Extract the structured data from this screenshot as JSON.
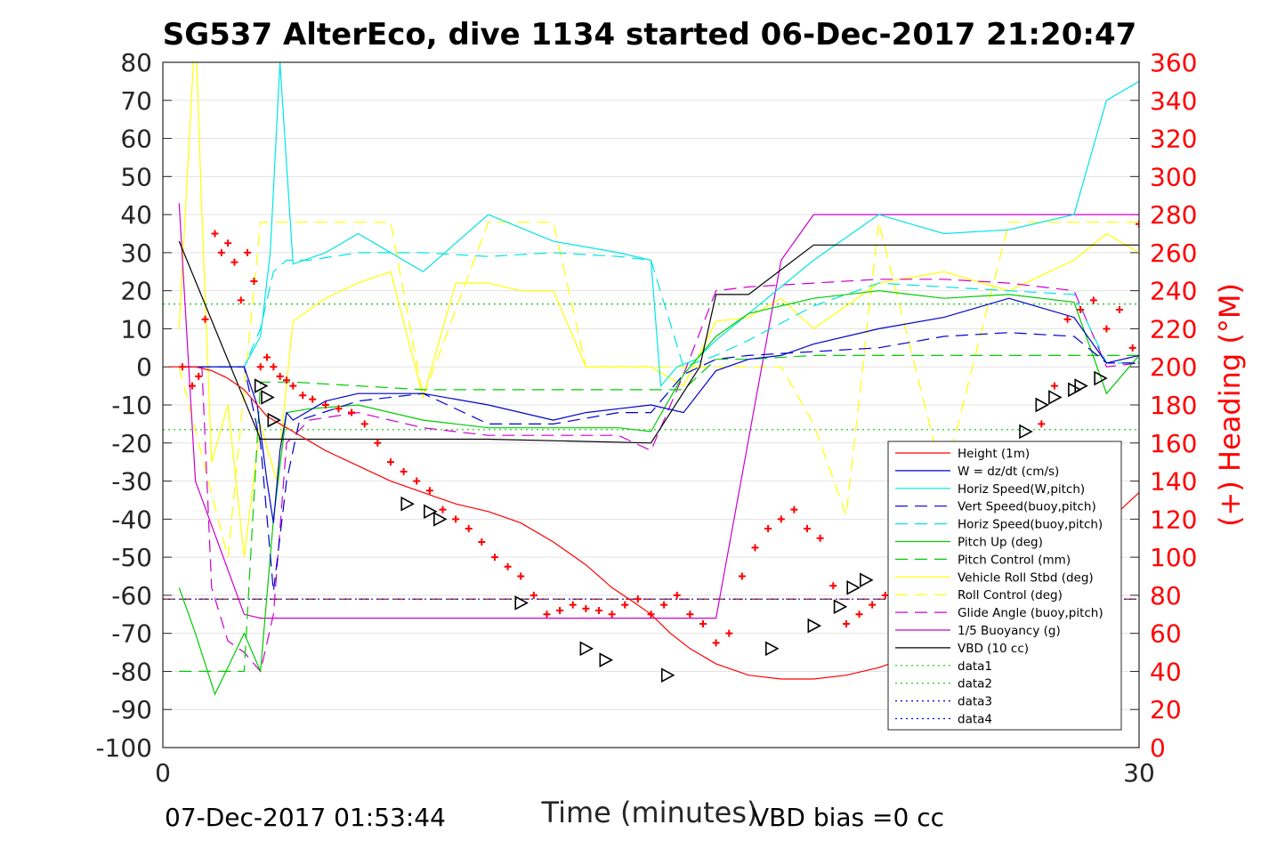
{
  "chart_data": {
    "type": "line",
    "title": "SG537 AlterEco, dive 1134 started 06-Dec-2017 21:20:47",
    "xlabel": "Time (minutes)",
    "ylabel_right": "(+) Heading (°M)",
    "footer_left": "07-Dec-2017 01:53:44",
    "footer_right": "VBD bias =0 cc",
    "xlim": [
      0,
      30
    ],
    "ylim": [
      -100,
      80
    ],
    "ylim_right": [
      0,
      360
    ],
    "x_ticks": [
      "0",
      "30"
    ],
    "y_ticks": [
      "80",
      "70",
      "60",
      "50",
      "40",
      "30",
      "20",
      "10",
      "0",
      "-10",
      "-20",
      "-30",
      "-40",
      "-50",
      "-60",
      "-70",
      "-80",
      "-90",
      "-100"
    ],
    "y_right_ticks": [
      "360",
      "340",
      "320",
      "300",
      "280",
      "260",
      "240",
      "220",
      "200",
      "180",
      "160",
      "140",
      "120",
      "100",
      "80",
      "60",
      "40",
      "20",
      "0"
    ],
    "grid": true,
    "legend_position": "lower-right",
    "colors": {
      "height": "#ff0000",
      "w": "#0000cc",
      "horiz_speed": "#00e5e5",
      "pitch": "#00cc00",
      "roll": "#ffff00",
      "glide": "#cc00cc",
      "buoyancy": "#cc00cc",
      "vbd": "#000000",
      "heading": "#ff0000"
    },
    "legend": [
      "Height (1m)",
      "W = dz/dt (cm/s)",
      "Horiz Speed(W,pitch)",
      "Vert Speed(buoy,pitch)",
      "Horiz Speed(buoy,pitch)",
      "Pitch Up (deg)",
      "Pitch Control (mm)",
      "Vehicle Roll Stbd (deg)",
      "Roll Control (deg)",
      "Glide Angle (buoy,pitch)",
      "1/5 Buoyancy (g)",
      "VBD (10 cc)",
      "data1",
      "data2",
      "data3",
      "data4"
    ],
    "series": [
      {
        "name": "Height (1m)",
        "x": [
          0.2,
          0.6,
          1.0,
          1.5,
          2.0,
          2.5,
          3.2,
          4.0,
          5.0,
          6.0,
          7.0,
          8.0,
          9.0,
          10.0,
          11.0,
          12.0,
          13.0,
          13.8,
          14.5,
          15.0,
          15.6,
          16.2,
          17.0,
          18.0,
          19.0,
          20.0,
          21.0,
          22.0,
          23.0,
          24.0,
          25.0,
          26.0,
          27.0,
          28.0,
          29.0,
          30.0
        ],
        "y": [
          0,
          0,
          0,
          -1,
          -3,
          -6,
          -13,
          -17,
          -22,
          -26,
          -30,
          -33,
          -36,
          -38,
          -41,
          -46,
          -52,
          -58,
          -62,
          -65,
          -70,
          -74,
          -78,
          -81,
          -82,
          -82,
          -81,
          -79,
          -76,
          -73,
          -68,
          -63,
          -57,
          -49,
          -41,
          -33
        ]
      },
      {
        "name": "W = dz/dt (cm/s)",
        "x": [
          0.5,
          2.5,
          2.9,
          3.2,
          3.4,
          3.6,
          3.8,
          4.0,
          5.0,
          6.0,
          8.0,
          10.0,
          12.0,
          13.0,
          14.0,
          15.0,
          16.0,
          17.0,
          18.0,
          19.0,
          20.0,
          22.0,
          24.0,
          26.0,
          28.0,
          29.0,
          30.0
        ],
        "y": [
          0,
          0,
          -10,
          -30,
          -41,
          -22,
          -12,
          -14,
          -9,
          -7,
          -7,
          -10,
          -14,
          -12,
          -11,
          -10,
          -12,
          -1,
          2,
          3,
          6,
          10,
          13,
          18,
          13,
          1,
          3
        ]
      },
      {
        "name": "Horiz Speed(W,pitch)",
        "x": [
          1.5,
          2.5,
          3.0,
          3.3,
          3.6,
          4.0,
          5.0,
          6.0,
          8.0,
          10.0,
          12.0,
          14.0,
          15.0,
          15.3,
          15.8,
          16.4,
          17.0,
          18.0,
          20.0,
          22.0,
          24.0,
          26.0,
          28.0,
          29.0,
          30.0
        ],
        "y": [
          0,
          0,
          8,
          30,
          80,
          27,
          30,
          35,
          25,
          40,
          33,
          30,
          28,
          -5,
          0,
          2,
          7,
          14,
          28,
          40,
          35,
          36,
          40,
          70,
          75
        ]
      },
      {
        "name": "Vert Speed(buoy,pitch)",
        "x": [
          0.5,
          2.5,
          3.0,
          3.4,
          3.8,
          4.2,
          6.0,
          8.0,
          10.0,
          12.0,
          14.0,
          15.0,
          16.0,
          17.0,
          18.0,
          20.0,
          22.0,
          24.0,
          26.0,
          28.0,
          29.0,
          30.0
        ],
        "y": [
          0,
          0,
          -20,
          -59,
          -30,
          -14,
          -9,
          -7,
          -15,
          -15,
          -12,
          -12,
          -2,
          2,
          3,
          4,
          5,
          8,
          9,
          8,
          1,
          1
        ]
      },
      {
        "name": "Horiz Speed(buoy,pitch)",
        "x": [
          0.5,
          2.5,
          3.0,
          3.4,
          3.8,
          4.5,
          6.0,
          8.0,
          10.0,
          12.0,
          14.0,
          15.0,
          16.0,
          17.0,
          18.0,
          20.0,
          22.0,
          24.0,
          26.0,
          28.0,
          29.0,
          30.0
        ],
        "y": [
          0,
          0,
          10,
          25,
          28,
          28,
          30,
          30,
          29,
          30,
          29,
          28,
          0,
          3,
          7,
          16,
          22,
          21,
          20,
          19,
          1,
          1
        ]
      },
      {
        "name": "Pitch Up (deg)",
        "x": [
          0.5,
          1.0,
          1.6,
          2.5,
          3.0,
          3.4,
          3.8,
          4.5,
          6.0,
          8.0,
          10.0,
          12.0,
          14.0,
          15.0,
          16.0,
          17.0,
          18.0,
          20.0,
          22.0,
          24.0,
          26.0,
          28.0,
          29.0,
          30.0
        ],
        "y": [
          -58,
          -70,
          -86,
          -70,
          -80,
          -40,
          -12,
          -11,
          -10,
          -14,
          -16,
          -16,
          -16,
          -17,
          -2,
          8,
          14,
          18,
          20,
          18,
          19,
          17,
          -7,
          3
        ]
      },
      {
        "name": "Pitch Control (mm)",
        "x": [
          0.5,
          2.5,
          3.0,
          4.0,
          8.0,
          12.0,
          15.0,
          16.0,
          17.0,
          18.0,
          20.0,
          24.0,
          28.0,
          30.0
        ],
        "y": [
          -80,
          -80,
          -4,
          -4,
          -6,
          -6,
          -6,
          -6,
          2,
          2,
          3,
          3,
          3,
          3
        ]
      },
      {
        "name": "Vehicle Roll Stbd (deg)",
        "x": [
          0.5,
          1.0,
          1.2,
          1.5,
          2.0,
          2.5,
          3.0,
          3.5,
          4.0,
          5.0,
          6.0,
          7.0,
          8.0,
          9.0,
          10.0,
          11.0,
          12.0,
          13.0,
          14.0,
          15.0,
          16.0,
          17.0,
          18.0,
          19.0,
          20.0,
          22.0,
          24.0,
          26.0,
          28.0,
          29.0,
          30.0
        ],
        "y": [
          10,
          90,
          40,
          -25,
          -10,
          -50,
          -15,
          -30,
          12,
          18,
          22,
          25,
          -8,
          22,
          22,
          20,
          20,
          0,
          0,
          0,
          -5,
          12,
          13,
          18,
          10,
          22,
          25,
          20,
          28,
          35,
          30
        ]
      },
      {
        "name": "Roll Control (deg)",
        "x": [
          0.5,
          2.0,
          3.0,
          4.0,
          7.0,
          8.0,
          10.0,
          11.0,
          12.0,
          13.0,
          15.0,
          16.0,
          17.0,
          18.0,
          19.0,
          20.0,
          21.0,
          22.0,
          24.0,
          26.0,
          28.0,
          30.0
        ],
        "y": [
          0,
          -50,
          38,
          38,
          38,
          -8,
          38,
          38,
          38,
          0,
          0,
          0,
          0,
          0,
          0,
          -15,
          -39,
          38,
          -30,
          38,
          38,
          38
        ]
      },
      {
        "name": "Glide Angle (buoy,pitch)",
        "x": [
          0.5,
          1.2,
          1.5,
          2.0,
          2.5,
          3.0,
          3.4,
          3.8,
          4.5,
          6.0,
          8.0,
          10.0,
          12.0,
          14.0,
          15.0,
          16.0,
          17.0,
          18.0,
          20.0,
          22.0,
          24.0,
          26.0,
          28.0,
          29.0,
          30.0
        ],
        "y": [
          0,
          0,
          -58,
          -72,
          -75,
          -80,
          -65,
          -20,
          -14,
          -12,
          -16,
          -18,
          -18,
          -18,
          -22,
          -2,
          20,
          21,
          22,
          23,
          23,
          22,
          20,
          0,
          1
        ]
      },
      {
        "name": "1/5 Buoyancy (g)",
        "x": [
          0.5,
          1.0,
          2.5,
          3.0,
          6.0,
          10.0,
          14.0,
          15.5,
          17.0,
          19.0,
          20.0,
          22.0,
          25.0,
          28.0,
          30.0
        ],
        "y": [
          43,
          -30,
          -65,
          -66,
          -66,
          -66,
          -66,
          -66,
          -66,
          28,
          40,
          40,
          40,
          40,
          40
        ]
      },
      {
        "name": "VBD (10 cc)",
        "x": [
          0.5,
          3.0,
          10.0,
          15.0,
          16.5,
          17.0,
          18.0,
          20.0,
          22.0,
          25.0,
          30.0
        ],
        "y": [
          33,
          -19,
          -19,
          -20,
          0,
          19,
          19,
          32,
          32,
          32,
          32
        ]
      },
      {
        "name": "data1",
        "x": [
          0,
          30
        ],
        "y": [
          16.5,
          16.5
        ]
      },
      {
        "name": "data2",
        "x": [
          0,
          30
        ],
        "y": [
          -16.5,
          -16.5
        ]
      },
      {
        "name": "data3",
        "x": [
          0,
          30
        ],
        "y": [
          -61,
          -61
        ]
      },
      {
        "name": "data4",
        "x": [
          0,
          30
        ],
        "y": [
          -61,
          -61
        ]
      }
    ],
    "heading_points": {
      "name": "(+) Heading (°M)",
      "x": [
        0.6,
        0.9,
        1.1,
        1.3,
        1.6,
        1.8,
        2.0,
        2.2,
        2.4,
        2.6,
        2.8,
        3.0,
        3.2,
        3.4,
        3.6,
        3.8,
        4.0,
        4.3,
        4.6,
        5.0,
        5.4,
        5.8,
        6.2,
        6.6,
        7.0,
        7.4,
        7.8,
        8.2,
        8.6,
        9.0,
        9.4,
        9.8,
        10.2,
        10.6,
        11.0,
        11.4,
        11.8,
        12.2,
        12.6,
        13.0,
        13.4,
        13.8,
        14.2,
        14.6,
        15.0,
        15.4,
        15.8,
        16.2,
        16.6,
        17.0,
        17.4,
        17.8,
        18.2,
        18.6,
        19.0,
        19.4,
        19.8,
        20.2,
        20.6,
        21.0,
        21.4,
        21.8,
        22.2,
        22.6,
        23.0,
        23.4,
        23.8,
        24.2,
        24.6,
        25.0,
        25.4,
        25.8,
        26.2,
        26.6,
        27.0,
        27.4,
        27.8,
        28.2,
        28.6,
        29.0,
        29.4,
        29.8,
        30.0
      ],
      "y": [
        200,
        190,
        195,
        225,
        270,
        260,
        265,
        255,
        235,
        260,
        245,
        200,
        205,
        200,
        195,
        193,
        190,
        185,
        183,
        180,
        178,
        176,
        170,
        160,
        150,
        145,
        140,
        135,
        125,
        120,
        115,
        108,
        100,
        95,
        90,
        80,
        70,
        72,
        75,
        73,
        72,
        70,
        75,
        78,
        70,
        75,
        80,
        70,
        65,
        55,
        60,
        90,
        105,
        115,
        120,
        125,
        115,
        110,
        85,
        65,
        70,
        75,
        80,
        85,
        90,
        95,
        80,
        75,
        70,
        72,
        78,
        80,
        70,
        70,
        170,
        190,
        225,
        230,
        235,
        220,
        230,
        210,
        275
      ]
    },
    "profile_markers": {
      "x": [
        3.0,
        3.2,
        3.4,
        7.5,
        8.2,
        8.5,
        11.0,
        13.0,
        13.6,
        15.5,
        18.7,
        20.0,
        20.8,
        21.2,
        21.6,
        22.6,
        23.0,
        24.2,
        26.5,
        27.0,
        27.4,
        28.0,
        28.2,
        28.8
      ],
      "y": [
        -5,
        -8,
        -14,
        -36,
        -38,
        -40,
        -62,
        -74,
        -77,
        -81,
        -74,
        -68,
        -63,
        -58,
        -56,
        -47,
        -44,
        -42,
        -17,
        -10,
        -8,
        -6,
        -5,
        -3
      ]
    }
  }
}
